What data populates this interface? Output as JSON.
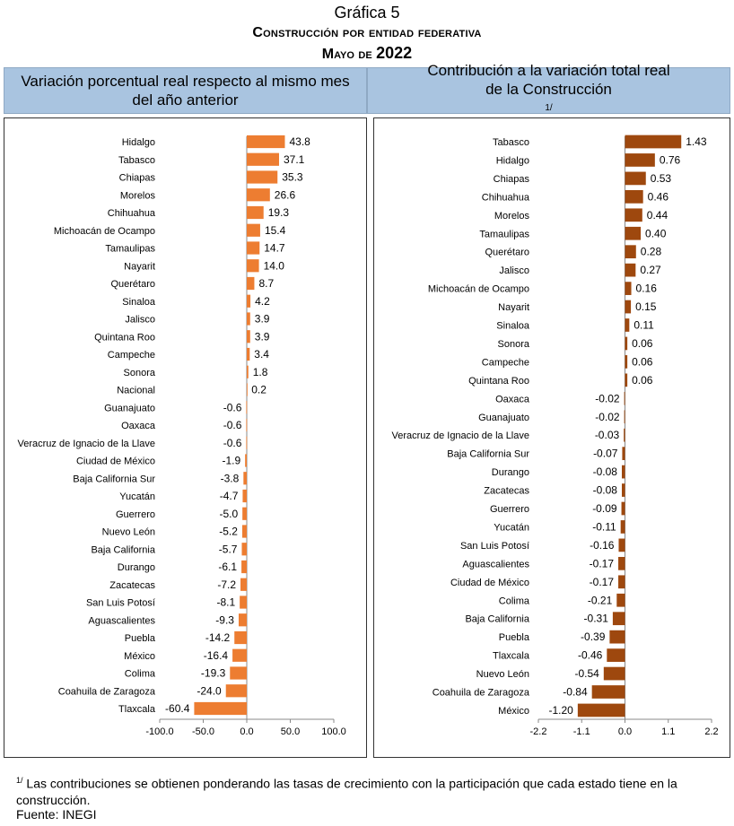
{
  "heading": {
    "grafica": "Gráfica 5",
    "title": "Construcción por entidad federativa",
    "period_month": "Mayo de",
    "period_year": "2022"
  },
  "left_header": {
    "line1": "Variación porcentual real respecto al mismo mes",
    "line2": "del año anterior"
  },
  "right_header": {
    "line1": "Contribución a la variación total real",
    "line2": "de la Construcción",
    "note_mark": "1/"
  },
  "footnote": {
    "mark": "1/",
    "text": "Las contribuciones se obtienen ponderando las tasas de crecimiento con la participación que cada estado tiene en la construcción."
  },
  "source": "Fuente: INEGI",
  "chart_data": [
    {
      "type": "bar",
      "orientation": "horizontal",
      "title": "Variación porcentual real respecto al mismo mes del año anterior",
      "color": "#ed7d31",
      "xlim": [
        -100,
        100
      ],
      "xticks": [
        "-100.0",
        "-50.0",
        "0.0",
        "50.0",
        "100.0"
      ],
      "xtick_values": [
        -100,
        -50,
        0,
        50,
        100
      ],
      "categories": [
        "Hidalgo",
        "Tabasco",
        "Chiapas",
        "Morelos",
        "Chihuahua",
        "Michoacán de Ocampo",
        "Tamaulipas",
        "Nayarit",
        "Querétaro",
        "Sinaloa",
        "Jalisco",
        "Quintana Roo",
        "Campeche",
        "Sonora",
        "Nacional",
        "Guanajuato",
        "Oaxaca",
        "Veracruz de Ignacio de la Llave",
        "Ciudad de México",
        "Baja California Sur",
        "Yucatán",
        "Guerrero",
        "Nuevo León",
        "Baja California",
        "Durango",
        "Zacatecas",
        "San Luis Potosí",
        "Aguascalientes",
        "Puebla",
        "México",
        "Colima",
        "Coahuila de Zaragoza",
        "Tlaxcala"
      ],
      "values": [
        43.8,
        37.1,
        35.3,
        26.6,
        19.3,
        15.4,
        14.7,
        14.0,
        8.7,
        4.2,
        3.9,
        3.9,
        3.4,
        1.8,
        0.2,
        -0.6,
        -0.6,
        -0.6,
        -1.9,
        -3.8,
        -4.7,
        -5.0,
        -5.2,
        -5.7,
        -6.1,
        -7.2,
        -8.1,
        -9.3,
        -14.2,
        -16.4,
        -19.3,
        -24.0,
        -60.4
      ],
      "labels": [
        "43.8",
        "37.1",
        "35.3",
        "26.6",
        "19.3",
        "15.4",
        "14.7",
        "14.0",
        "8.7",
        "4.2",
        "3.9",
        "3.9",
        "3.4",
        "1.8",
        "0.2",
        "-0.6",
        "-0.6",
        "-0.6",
        "-1.9",
        "-3.8",
        "-4.7",
        "-5.0",
        "-5.2",
        "-5.7",
        "-6.1",
        "-7.2",
        "-8.1",
        "-9.3",
        "-14.2",
        "-16.4",
        "-19.3",
        "-24.0",
        "-60.4"
      ]
    },
    {
      "type": "bar",
      "orientation": "horizontal",
      "title": "Contribución a la variación total real de la Construcción",
      "color": "#9e480e",
      "xlim": [
        -2.2,
        2.2
      ],
      "xticks": [
        "-2.2",
        "-1.1",
        "0.0",
        "1.1",
        "2.2"
      ],
      "xtick_values": [
        -2.2,
        -1.1,
        0,
        1.1,
        2.2
      ],
      "categories": [
        "Tabasco",
        "Hidalgo",
        "Chiapas",
        "Chihuahua",
        "Morelos",
        "Tamaulipas",
        "Querétaro",
        "Jalisco",
        "Michoacán de Ocampo",
        "Nayarit",
        "Sinaloa",
        "Sonora",
        "Campeche",
        "Quintana Roo",
        "Oaxaca",
        "Guanajuato",
        "Veracruz de Ignacio de la Llave",
        "Baja California Sur",
        "Durango",
        "Zacatecas",
        "Guerrero",
        "Yucatán",
        "San Luis Potosí",
        "Aguascalientes",
        "Ciudad de México",
        "Colima",
        "Baja California",
        "Puebla",
        "Tlaxcala",
        "Nuevo León",
        "Coahuila de Zaragoza",
        "México"
      ],
      "values": [
        1.43,
        0.76,
        0.53,
        0.46,
        0.44,
        0.4,
        0.28,
        0.27,
        0.16,
        0.15,
        0.11,
        0.06,
        0.06,
        0.06,
        -0.02,
        -0.02,
        -0.03,
        -0.07,
        -0.08,
        -0.08,
        -0.09,
        -0.11,
        -0.16,
        -0.17,
        -0.17,
        -0.21,
        -0.31,
        -0.39,
        -0.46,
        -0.54,
        -0.84,
        -1.2
      ],
      "labels": [
        "1.43",
        "0.76",
        "0.53",
        "0.46",
        "0.44",
        "0.40",
        "0.28",
        "0.27",
        "0.16",
        "0.15",
        "0.11",
        "0.06",
        "0.06",
        "0.06",
        "-0.02",
        "-0.02",
        "-0.03",
        "-0.07",
        "-0.08",
        "-0.08",
        "-0.09",
        "-0.11",
        "-0.16",
        "-0.17",
        "-0.17",
        "-0.21",
        "-0.31",
        "-0.39",
        "-0.46",
        "-0.54",
        "-0.84",
        "-1.20"
      ]
    }
  ]
}
